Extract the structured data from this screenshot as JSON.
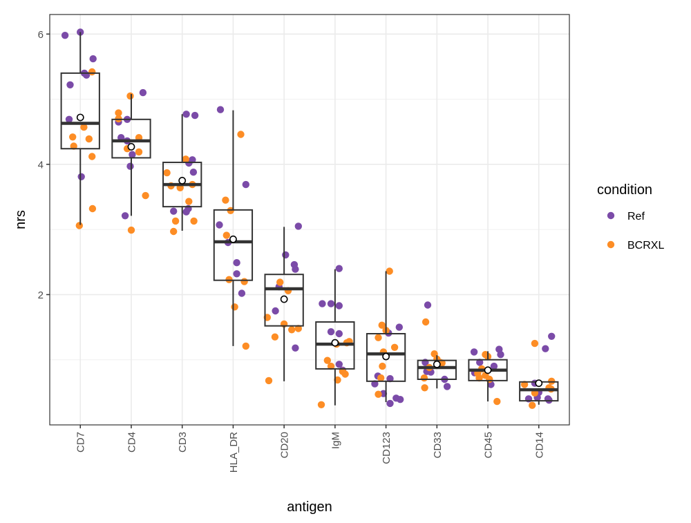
{
  "chart_data": {
    "type": "boxplot",
    "title": "",
    "xlabel": "antigen",
    "ylabel": "nrs",
    "ylim": [
      0,
      6.3
    ],
    "yticks": [
      2,
      4,
      6
    ],
    "grid": true,
    "categories": [
      "CD7",
      "CD4",
      "CD3",
      "HLA_DR",
      "CD20",
      "IgM",
      "CD123",
      "CD33",
      "CD45",
      "CD14"
    ],
    "boxes": [
      {
        "category": "CD7",
        "lower_whisker": 3.07,
        "q1": 4.24,
        "median": 4.63,
        "q3": 5.4,
        "upper_whisker": 6.03,
        "mean": 4.72
      },
      {
        "category": "CD4",
        "lower_whisker": 3.21,
        "q1": 4.1,
        "median": 4.36,
        "q3": 4.69,
        "upper_whisker": 5.08,
        "mean": 4.27
      },
      {
        "category": "CD3",
        "lower_whisker": 2.98,
        "q1": 3.35,
        "median": 3.69,
        "q3": 4.03,
        "upper_whisker": 4.77,
        "mean": 3.75
      },
      {
        "category": "HLA_DR",
        "lower_whisker": 1.21,
        "q1": 2.22,
        "median": 2.81,
        "q3": 3.3,
        "upper_whisker": 4.83,
        "mean": 2.85
      },
      {
        "category": "CD20",
        "lower_whisker": 0.67,
        "q1": 1.52,
        "median": 2.09,
        "q3": 2.31,
        "upper_whisker": 3.04,
        "mean": 1.93
      },
      {
        "category": "IgM",
        "lower_whisker": 0.3,
        "q1": 0.86,
        "median": 1.24,
        "q3": 1.58,
        "upper_whisker": 2.39,
        "mean": 1.26
      },
      {
        "category": "CD123",
        "lower_whisker": 0.35,
        "q1": 0.67,
        "median": 1.09,
        "q3": 1.4,
        "upper_whisker": 2.36,
        "mean": 1.05
      },
      {
        "category": "CD33",
        "lower_whisker": 0.56,
        "q1": 0.7,
        "median": 0.88,
        "q3": 0.99,
        "upper_whisker": 1.07,
        "mean": 0.93
      },
      {
        "category": "CD45",
        "lower_whisker": 0.36,
        "q1": 0.68,
        "median": 0.84,
        "q3": 1.0,
        "upper_whisker": 1.13,
        "mean": 0.84
      },
      {
        "category": "CD14",
        "lower_whisker": 0.31,
        "q1": 0.37,
        "median": 0.54,
        "q3": 0.66,
        "upper_whisker": 0.66,
        "mean": 0.64
      }
    ],
    "series": [
      {
        "name": "Ref",
        "color": "#7b4ba8",
        "points": [
          [
            "CD7",
            -0.3,
            5.98
          ],
          [
            "CD7",
            0.0,
            6.03
          ],
          [
            "CD7",
            0.25,
            5.62
          ],
          [
            "CD7",
            0.08,
            5.4
          ],
          [
            "CD7",
            0.12,
            5.37
          ],
          [
            "CD7",
            -0.2,
            5.22
          ],
          [
            "CD7",
            -0.22,
            4.69
          ],
          [
            "CD7",
            0.02,
            3.81
          ],
          [
            "CD4",
            0.23,
            5.1
          ],
          [
            "CD4",
            -0.08,
            4.69
          ],
          [
            "CD4",
            -0.25,
            4.65
          ],
          [
            "CD4",
            -0.2,
            4.41
          ],
          [
            "CD4",
            -0.08,
            4.36
          ],
          [
            "CD4",
            0.02,
            4.15
          ],
          [
            "CD4",
            -0.02,
            3.97
          ],
          [
            "CD4",
            -0.12,
            3.21
          ],
          [
            "CD3",
            0.08,
            4.77
          ],
          [
            "CD3",
            0.25,
            4.75
          ],
          [
            "CD3",
            0.2,
            4.07
          ],
          [
            "CD3",
            0.13,
            4.02
          ],
          [
            "CD3",
            0.22,
            3.88
          ],
          [
            "CD3",
            0.12,
            3.32
          ],
          [
            "CD3",
            -0.17,
            3.28
          ],
          [
            "CD3",
            0.08,
            3.27
          ],
          [
            "HLA_DR",
            -0.25,
            4.84
          ],
          [
            "HLA_DR",
            0.25,
            3.69
          ],
          [
            "HLA_DR",
            -0.27,
            3.07
          ],
          [
            "HLA_DR",
            -0.1,
            2.8
          ],
          [
            "HLA_DR",
            0.07,
            2.49
          ],
          [
            "HLA_DR",
            0.07,
            2.32
          ],
          [
            "HLA_DR",
            0.17,
            2.02
          ],
          [
            "CD20",
            0.28,
            3.05
          ],
          [
            "CD20",
            0.03,
            2.61
          ],
          [
            "CD20",
            0.2,
            2.46
          ],
          [
            "CD20",
            0.22,
            2.39
          ],
          [
            "CD20",
            -0.17,
            1.75
          ],
          [
            "CD20",
            0.22,
            1.18
          ],
          [
            "CD20",
            -0.1,
            2.12
          ],
          [
            "IgM",
            0.08,
            2.4
          ],
          [
            "IgM",
            -0.25,
            1.86
          ],
          [
            "IgM",
            -0.08,
            1.86
          ],
          [
            "IgM",
            0.08,
            1.83
          ],
          [
            "IgM",
            -0.08,
            1.43
          ],
          [
            "IgM",
            0.08,
            1.4
          ],
          [
            "IgM",
            0.08,
            0.93
          ],
          [
            "IgM",
            0.15,
            0.84
          ],
          [
            "CD123",
            0.26,
            1.5
          ],
          [
            "CD123",
            0.05,
            1.41
          ],
          [
            "CD123",
            0.08,
            0.71
          ],
          [
            "CD123",
            -0.16,
            0.75
          ],
          [
            "CD123",
            -0.22,
            0.63
          ],
          [
            "CD123",
            0.2,
            0.41
          ],
          [
            "CD123",
            0.28,
            0.39
          ],
          [
            "CD123",
            0.08,
            0.33
          ],
          [
            "CD123",
            -0.05,
            0.48
          ],
          [
            "CD33",
            -0.18,
            1.84
          ],
          [
            "CD33",
            -0.23,
            0.96
          ],
          [
            "CD33",
            -0.2,
            0.82
          ],
          [
            "CD33",
            -0.12,
            0.81
          ],
          [
            "CD33",
            0.15,
            0.7
          ],
          [
            "CD33",
            0.2,
            0.59
          ],
          [
            "CD45",
            -0.27,
            1.12
          ],
          [
            "CD45",
            0.22,
            1.16
          ],
          [
            "CD45",
            0.25,
            1.08
          ],
          [
            "CD45",
            -0.16,
            0.96
          ],
          [
            "CD45",
            0.12,
            0.9
          ],
          [
            "CD45",
            -0.26,
            0.8
          ],
          [
            "CD45",
            0.06,
            0.62
          ],
          [
            "CD14",
            0.25,
            1.36
          ],
          [
            "CD14",
            0.13,
            1.17
          ],
          [
            "CD14",
            -0.08,
            0.64
          ],
          [
            "CD14",
            0.0,
            0.5
          ],
          [
            "CD14",
            -0.2,
            0.4
          ],
          [
            "CD14",
            -0.03,
            0.42
          ],
          [
            "CD14",
            0.2,
            0.38
          ],
          [
            "CD14",
            0.18,
            0.4
          ]
        ]
      },
      {
        "name": "BCRXL",
        "color": "#fd8d25",
        "points": [
          [
            "CD7",
            0.23,
            5.42
          ],
          [
            "CD7",
            0.07,
            4.57
          ],
          [
            "CD7",
            -0.15,
            4.42
          ],
          [
            "CD7",
            0.17,
            4.39
          ],
          [
            "CD7",
            -0.13,
            4.28
          ],
          [
            "CD7",
            0.23,
            4.12
          ],
          [
            "CD7",
            0.24,
            3.32
          ],
          [
            "CD7",
            -0.02,
            3.06
          ],
          [
            "CD4",
            -0.02,
            5.05
          ],
          [
            "CD4",
            -0.25,
            4.79
          ],
          [
            "CD4",
            -0.25,
            4.7
          ],
          [
            "CD4",
            0.15,
            4.41
          ],
          [
            "CD4",
            -0.08,
            4.24
          ],
          [
            "CD4",
            0.15,
            4.19
          ],
          [
            "CD4",
            0.28,
            3.52
          ],
          [
            "CD4",
            0.0,
            2.99
          ],
          [
            "CD3",
            0.07,
            4.08
          ],
          [
            "CD3",
            -0.3,
            3.87
          ],
          [
            "CD3",
            -0.22,
            3.67
          ],
          [
            "CD3",
            -0.04,
            3.64
          ],
          [
            "CD3",
            0.2,
            3.69
          ],
          [
            "CD3",
            0.13,
            3.43
          ],
          [
            "CD3",
            -0.13,
            3.13
          ],
          [
            "CD3",
            0.23,
            3.13
          ],
          [
            "CD3",
            -0.17,
            2.97
          ],
          [
            "HLA_DR",
            0.15,
            4.46
          ],
          [
            "HLA_DR",
            -0.15,
            3.45
          ],
          [
            "HLA_DR",
            -0.05,
            3.29
          ],
          [
            "HLA_DR",
            -0.13,
            2.91
          ],
          [
            "HLA_DR",
            -0.08,
            2.23
          ],
          [
            "HLA_DR",
            0.22,
            2.2
          ],
          [
            "HLA_DR",
            0.03,
            1.81
          ],
          [
            "HLA_DR",
            0.25,
            1.21
          ],
          [
            "CD20",
            -0.08,
            2.19
          ],
          [
            "CD20",
            0.08,
            2.06
          ],
          [
            "CD20",
            -0.33,
            1.65
          ],
          [
            "CD20",
            0.28,
            1.48
          ],
          [
            "CD20",
            -0.18,
            1.35
          ],
          [
            "CD20",
            0.0,
            1.55
          ],
          [
            "CD20",
            0.15,
            1.46
          ],
          [
            "CD20",
            -0.3,
            0.68
          ],
          [
            "IgM",
            0.28,
            1.28
          ],
          [
            "IgM",
            0.23,
            1.26
          ],
          [
            "IgM",
            -0.15,
            0.99
          ],
          [
            "IgM",
            -0.08,
            0.9
          ],
          [
            "IgM",
            0.15,
            0.82
          ],
          [
            "IgM",
            0.2,
            0.78
          ],
          [
            "IgM",
            0.05,
            0.69
          ],
          [
            "IgM",
            -0.27,
            0.31
          ],
          [
            "IgM",
            0.03,
            1.24
          ],
          [
            "CD123",
            -0.08,
            1.53
          ],
          [
            "CD123",
            0.0,
            1.45
          ],
          [
            "CD123",
            -0.15,
            1.34
          ],
          [
            "CD123",
            0.17,
            1.19
          ],
          [
            "CD123",
            -0.05,
            1.12
          ],
          [
            "CD123",
            -0.07,
            0.9
          ],
          [
            "CD123",
            -0.1,
            0.72
          ],
          [
            "CD123",
            -0.15,
            0.47
          ],
          [
            "CD123",
            0.07,
            2.36
          ],
          [
            "CD33",
            -0.22,
            1.58
          ],
          [
            "CD33",
            -0.05,
            1.09
          ],
          [
            "CD33",
            0.0,
            1.01
          ],
          [
            "CD33",
            0.06,
            0.96
          ],
          [
            "CD33",
            0.1,
            0.95
          ],
          [
            "CD33",
            -0.15,
            0.88
          ],
          [
            "CD33",
            -0.25,
            0.72
          ],
          [
            "CD33",
            -0.24,
            0.57
          ],
          [
            "CD45",
            -0.05,
            1.08
          ],
          [
            "CD45",
            0.0,
            1.05
          ],
          [
            "CD45",
            -0.12,
            0.86
          ],
          [
            "CD45",
            -0.2,
            0.79
          ],
          [
            "CD45",
            -0.05,
            0.76
          ],
          [
            "CD45",
            0.03,
            0.7
          ],
          [
            "CD45",
            -0.17,
            0.72
          ],
          [
            "CD45",
            0.18,
            0.36
          ],
          [
            "CD14",
            -0.08,
            1.25
          ],
          [
            "CD14",
            -0.28,
            0.62
          ],
          [
            "CD14",
            0.25,
            0.67
          ],
          [
            "CD14",
            0.2,
            0.57
          ],
          [
            "CD14",
            0.24,
            0.55
          ],
          [
            "CD14",
            -0.08,
            0.49
          ],
          [
            "CD14",
            -0.13,
            0.3
          ]
        ]
      }
    ],
    "legend": {
      "title": "condition",
      "placement": "right",
      "entries": [
        "Ref",
        "BCRXL"
      ]
    },
    "box_color": "#333333",
    "mean_marker": "open-circle"
  }
}
